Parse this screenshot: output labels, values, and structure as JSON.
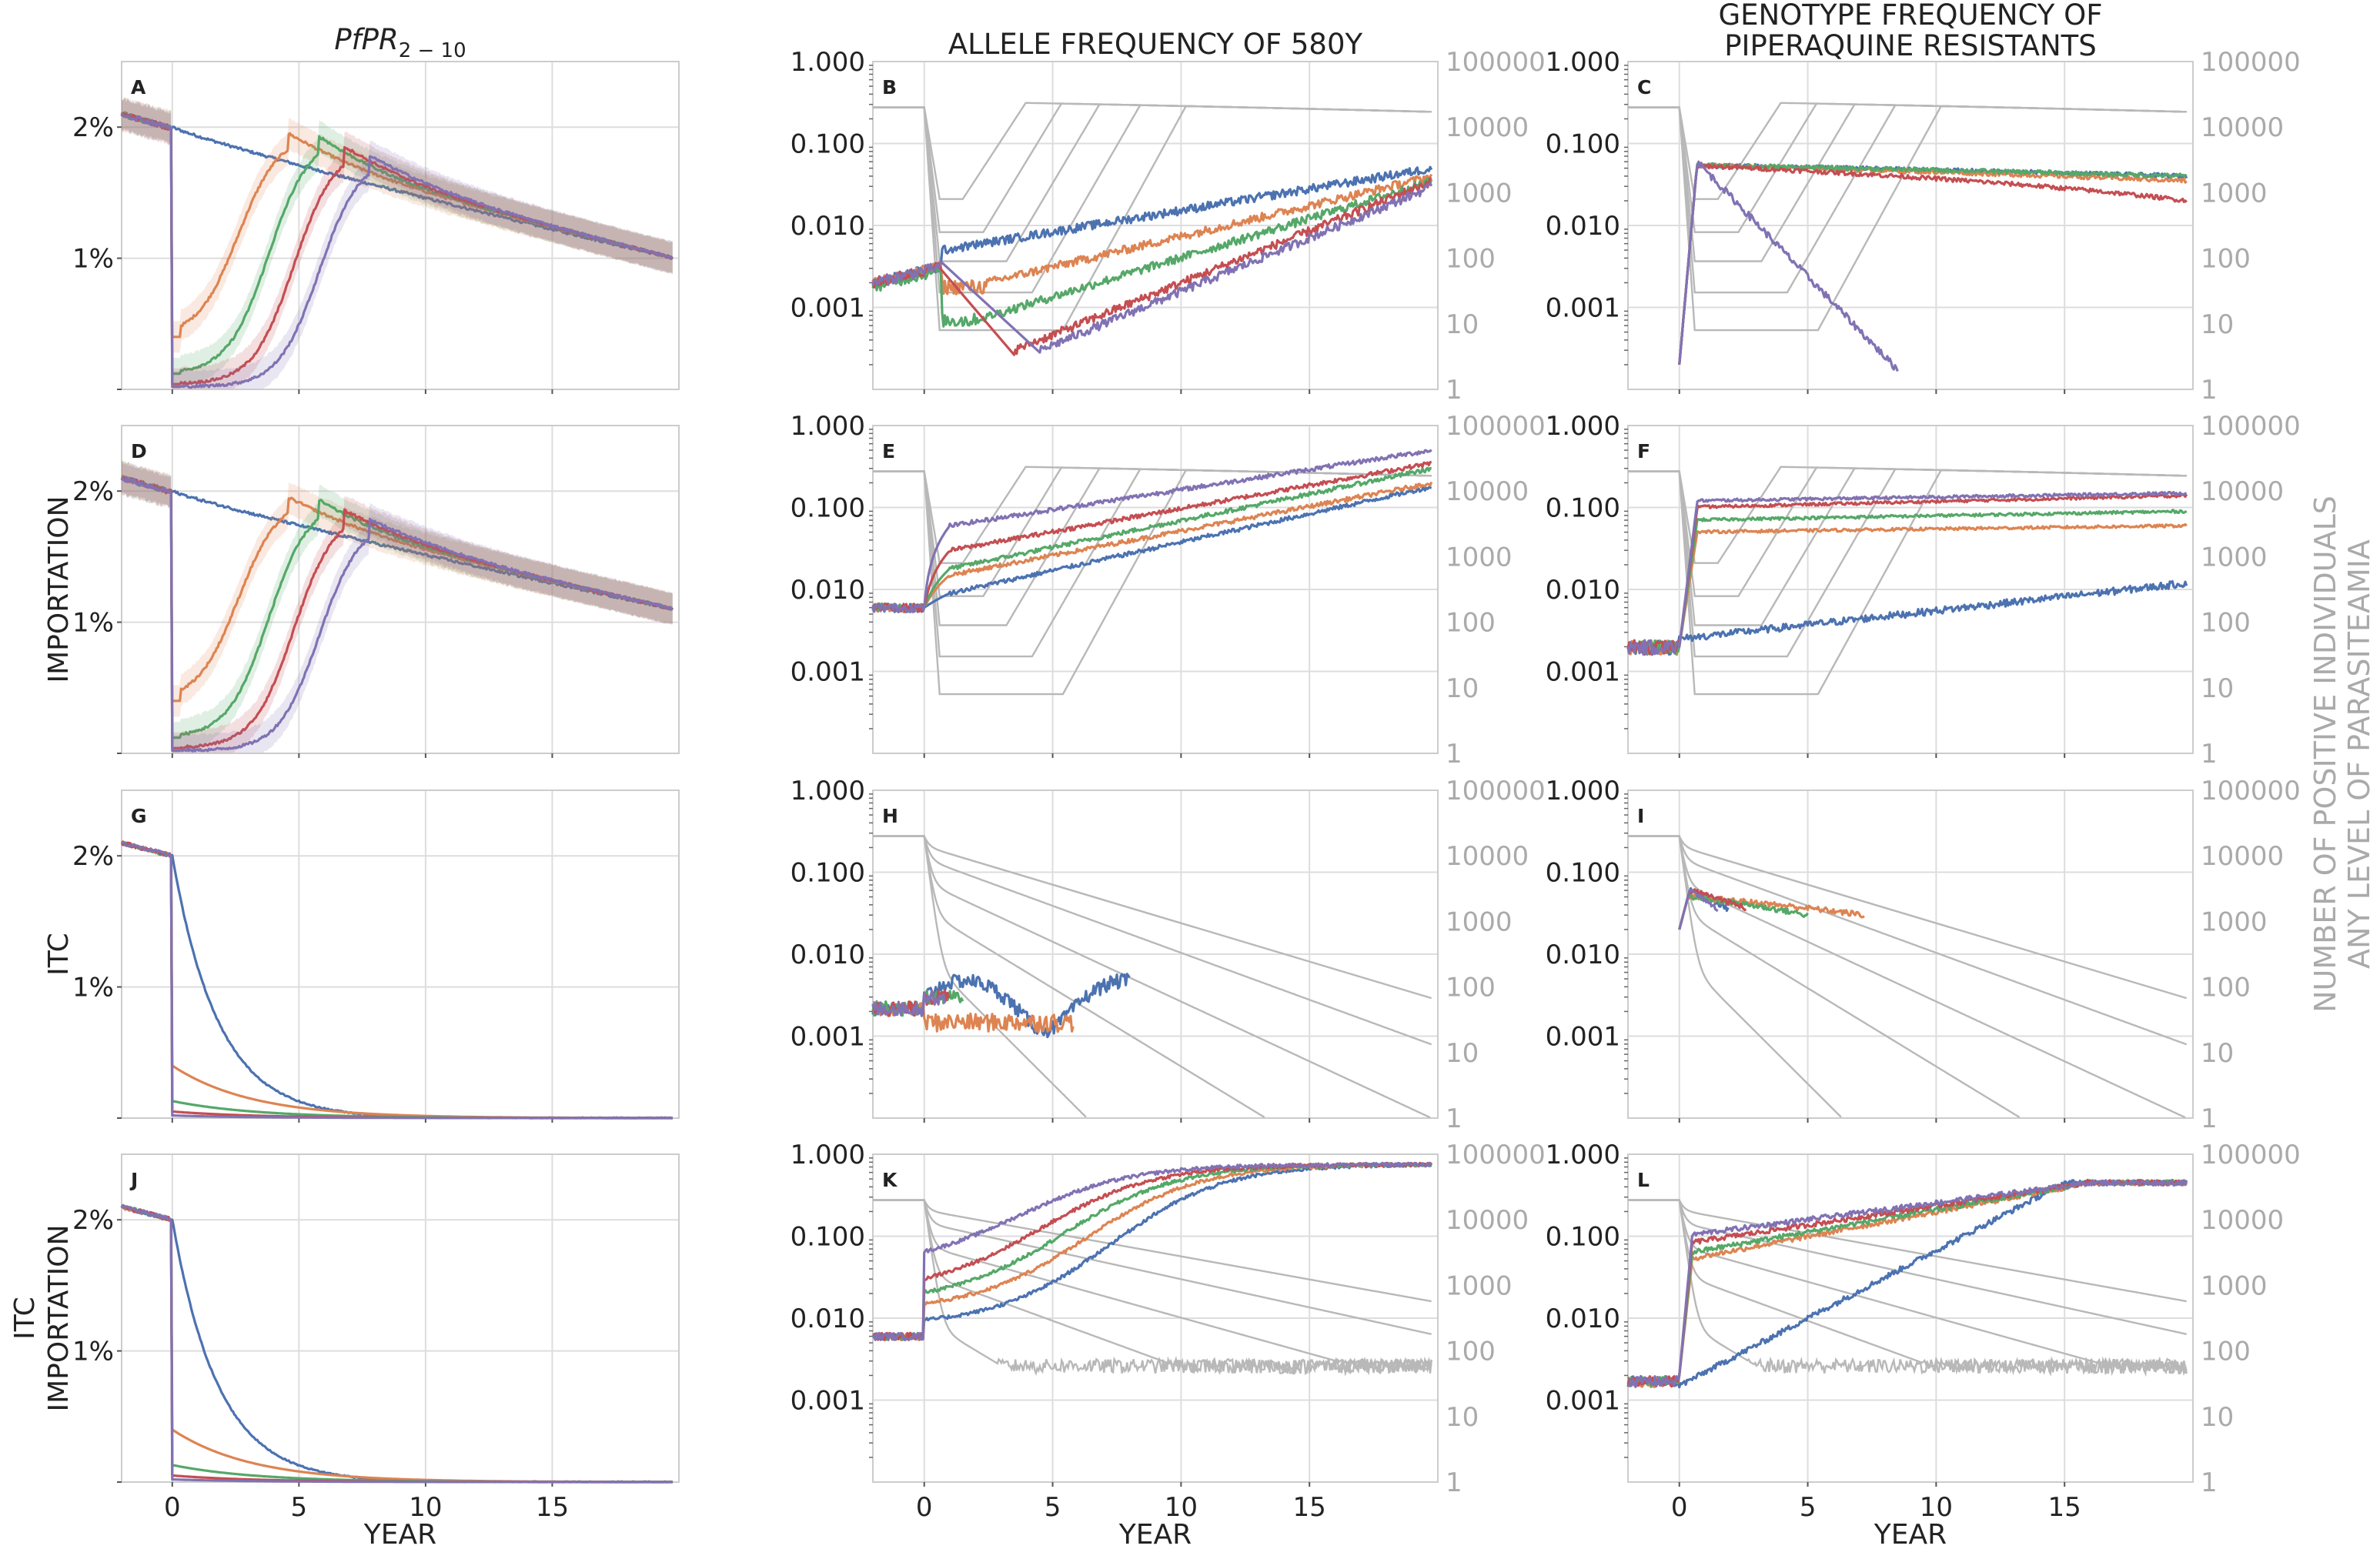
{
  "figure": {
    "column_titles": [
      "PfPR",
      "ALLELE FREQUENCY OF 580Y",
      "GENOTYPE FREQUENCY OF",
      "PIPERAQUINE RESISTANTS"
    ],
    "pfpr_title_subscript": "2 − 10",
    "row_labels": [
      {
        "lines": [
          ""
        ]
      },
      {
        "lines": [
          "IMPORTATION"
        ]
      },
      {
        "lines": [
          "ITC"
        ]
      },
      {
        "lines": [
          "ITC",
          "IMPORTATION"
        ]
      }
    ],
    "right_axis_label": [
      "NUMBER OF POSITIVE INDIVIDUALS",
      "ANY LEVEL OF PARASITEAMIA"
    ],
    "x_axis_label": "YEAR",
    "colors": {
      "blue": "#4c72b0",
      "orange": "#dd8452",
      "green": "#55a868",
      "red": "#c44e52",
      "purple": "#8172b3",
      "gray": "#b8b8b8"
    }
  },
  "chart_data": [
    {
      "panel": "A",
      "type": "line",
      "xlim": [
        -2,
        20
      ],
      "x_ticks": [
        "0",
        "5",
        "10",
        "15"
      ],
      "ylabel_ticks": [
        "2%",
        "1%"
      ],
      "yscale": "linear",
      "series": [
        {
          "color": "blue",
          "description_curve": "slow decline",
          "start": 2.1,
          "end": 1.0
        },
        {
          "color": "orange",
          "drop_to": 0.4,
          "peak_year": 4.6,
          "peak": 1.95
        },
        {
          "color": "green",
          "drop_to": 0.12,
          "peak_year": 5.8,
          "peak": 1.93
        },
        {
          "color": "red",
          "drop_to": 0.04,
          "peak_year": 6.8,
          "peak": 1.85
        },
        {
          "color": "purple",
          "drop_to": 0.02,
          "peak_year": 7.8,
          "peak": 1.78
        }
      ]
    },
    {
      "panel": "B",
      "type": "line",
      "yscale": "log",
      "left_ticks": [
        "1.000",
        "0.100",
        "0.010",
        "0.001"
      ],
      "right_ticks": [
        "100000",
        "10000",
        "1000",
        "100",
        "10",
        "1"
      ]
    },
    {
      "panel": "C",
      "type": "line",
      "yscale": "log",
      "left_ticks": [
        "1.000",
        "0.100",
        "0.010",
        "0.001"
      ],
      "right_ticks": [
        "100000",
        "10000",
        "1000",
        "100",
        "10",
        "1"
      ]
    },
    {
      "panel": "D",
      "type": "line",
      "yscale": "linear",
      "ylabel_ticks": [
        "2%",
        "1%"
      ]
    },
    {
      "panel": "E",
      "type": "line",
      "yscale": "log"
    },
    {
      "panel": "F",
      "type": "line",
      "yscale": "log"
    },
    {
      "panel": "G",
      "type": "line",
      "yscale": "linear",
      "ylabel_ticks": [
        "2%",
        "1%"
      ]
    },
    {
      "panel": "H",
      "type": "line",
      "yscale": "log"
    },
    {
      "panel": "I",
      "type": "line",
      "yscale": "log"
    },
    {
      "panel": "J",
      "type": "line",
      "yscale": "linear",
      "ylabel_ticks": [
        "2%",
        "1%"
      ]
    },
    {
      "panel": "K",
      "type": "line",
      "yscale": "log"
    },
    {
      "panel": "L",
      "type": "line",
      "yscale": "log"
    }
  ],
  "panels": {
    "letters": [
      "A",
      "B",
      "C",
      "D",
      "E",
      "F",
      "G",
      "H",
      "I",
      "J",
      "K",
      "L"
    ],
    "left_pct_ticks": [
      "2%",
      "1%"
    ],
    "left_log_ticks": [
      "1.000",
      "0.100",
      "0.010",
      "0.001"
    ],
    "right_log_ticks": [
      "100000",
      "10000",
      "1000",
      "100",
      "10",
      "1"
    ],
    "x_ticks": [
      "0",
      "5",
      "10",
      "15"
    ]
  }
}
